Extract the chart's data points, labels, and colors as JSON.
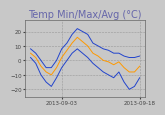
{
  "title": "Temp Min/Max/Avg (°C)",
  "background_color": "#c8c8c8",
  "plot_bg_color": "#c8c8c8",
  "ylim": [
    -25,
    28
  ],
  "yticks": [
    -20,
    -10,
    0,
    10,
    20
  ],
  "tick_dates": [
    "2013-09-03",
    "2013-09-18"
  ],
  "base_date": "2013-08-28",
  "n_days": 22,
  "line_color_max": "#2244cc",
  "line_color_min": "#2244cc",
  "line_color_avg": "#ff9900",
  "title_color": "#6666aa",
  "title_fontsize": 7.0,
  "max_temps": [
    8,
    5,
    0,
    -5,
    -5,
    0,
    8,
    12,
    18,
    22,
    20,
    18,
    12,
    10,
    8,
    7,
    5,
    5,
    3,
    2,
    2,
    3
  ],
  "min_temps": [
    2,
    -2,
    -10,
    -15,
    -18,
    -12,
    -5,
    0,
    5,
    8,
    5,
    2,
    -2,
    -5,
    -8,
    -10,
    -12,
    -8,
    -15,
    -20,
    -18,
    -12
  ],
  "avg_temps": [
    5,
    2,
    -4,
    -8,
    -10,
    -5,
    2,
    7,
    12,
    16,
    13,
    10,
    5,
    3,
    0,
    -1,
    -3,
    -1,
    -5,
    -8,
    -8,
    -4
  ]
}
